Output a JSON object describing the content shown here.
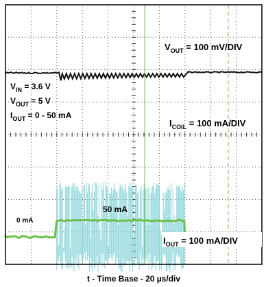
{
  "chart_data": {
    "type": "line",
    "title": "",
    "xlabel": "t - Time Base - 20 µs/div",
    "grid": true,
    "divisions": {
      "x": 10,
      "y": 8
    },
    "colors": {
      "vout": "#111111",
      "icoil": "#7fd0d6",
      "iout": "#6cc04a",
      "cursor": "#6cc04a"
    },
    "channels": [
      {
        "name": "VOUT",
        "scale": "100 mV/DIV"
      },
      {
        "name": "ICOIL",
        "scale": "100 mA/DIV"
      },
      {
        "name": "IOUT",
        "scale": "100 mA/DIV"
      }
    ],
    "iout_step": {
      "from_ma": 0,
      "to_ma": 50,
      "start_div": 2.0,
      "end_div": 7.0
    }
  },
  "annotations": {
    "vout_scale": {
      "sym": "V",
      "sub": "OUT",
      "rest": " = 100 mV/DIV"
    },
    "icoil_scale": {
      "sym": "I",
      "sub": "COIL",
      "rest": " = 100 mA/DIV"
    },
    "iout_scale": {
      "sym": "I",
      "sub": "OUT",
      "rest": " = 100 mA/DIV"
    },
    "vin": {
      "sym": "V",
      "sub": "IN",
      "rest": " = 3.6 V"
    },
    "vout": {
      "sym": "V",
      "sub": "OUT",
      "rest": " = 5 V"
    },
    "iout": {
      "sym": "I",
      "sub": "OUT",
      "rest": " = 0 - 50 mA"
    },
    "zero_ma": "0 mA",
    "fifty_ma": "50 mA"
  }
}
